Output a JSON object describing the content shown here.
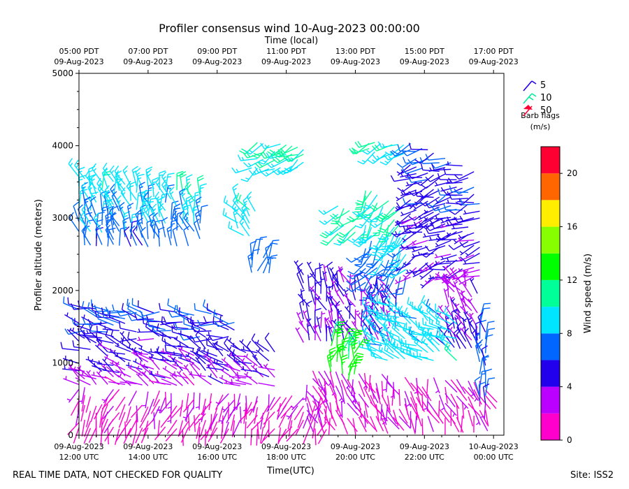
{
  "chart_data": {
    "type": "wind-barb profile",
    "title": "Profiler consensus wind 10-Aug-2023 00:00:00",
    "top_axis_label": "Time (local)",
    "xlabel": "Time(UTC)",
    "ylabel": "Profiler altitude (meters)",
    "x_range_hours_utc": [
      12.0,
      24.3
    ],
    "ylim": [
      0,
      5000
    ],
    "y_ticks": [
      0,
      1000,
      2000,
      3000,
      4000,
      5000
    ],
    "x_ticks_utc": [
      {
        "hour": 12,
        "line1": "09-Aug-2023",
        "line2": "12:00 UTC"
      },
      {
        "hour": 14,
        "line1": "09-Aug-2023",
        "line2": "14:00 UTC"
      },
      {
        "hour": 16,
        "line1": "09-Aug-2023",
        "line2": "16:00 UTC"
      },
      {
        "hour": 18,
        "line1": "09-Aug-2023",
        "line2": "18:00 UTC"
      },
      {
        "hour": 20,
        "line1": "09-Aug-2023",
        "line2": "20:00 UTC"
      },
      {
        "hour": 22,
        "line1": "09-Aug-2023",
        "line2": "22:00 UTC"
      },
      {
        "hour": 24,
        "line1": "10-Aug-2023",
        "line2": "00:00 UTC"
      }
    ],
    "x_ticks_local": [
      {
        "hour": 12,
        "line1": "05:00 PDT",
        "line2": "09-Aug-2023"
      },
      {
        "hour": 14,
        "line1": "07:00 PDT",
        "line2": "09-Aug-2023"
      },
      {
        "hour": 16,
        "line1": "09:00 PDT",
        "line2": "09-Aug-2023"
      },
      {
        "hour": 18,
        "line1": "11:00 PDT",
        "line2": "09-Aug-2023"
      },
      {
        "hour": 20,
        "line1": "13:00 PDT",
        "line2": "09-Aug-2023"
      },
      {
        "hour": 22,
        "line1": "15:00 PDT",
        "line2": "09-Aug-2023"
      },
      {
        "hour": 24,
        "line1": "17:00 PDT",
        "line2": "09-Aug-2023"
      }
    ],
    "barb_legend": {
      "entries": [
        {
          "label": "5",
          "color": "#2200ee"
        },
        {
          "label": "10",
          "color": "#00ee99"
        },
        {
          "label": "50",
          "color": "#ff0033"
        }
      ],
      "title_line1": "Barb flags",
      "title_line2": "(m/s)"
    },
    "colorbar": {
      "label": "Wind speed (m/s)",
      "range": [
        0,
        22
      ],
      "ticks": [
        0,
        4,
        8,
        12,
        16,
        20
      ],
      "bins": [
        {
          "from": 0,
          "to": 2,
          "color": "#ff00cc"
        },
        {
          "from": 2,
          "to": 4,
          "color": "#bb00ff"
        },
        {
          "from": 4,
          "to": 6,
          "color": "#2200ee"
        },
        {
          "from": 6,
          "to": 8,
          "color": "#0066ff"
        },
        {
          "from": 8,
          "to": 10,
          "color": "#00e5ff"
        },
        {
          "from": 10,
          "to": 12,
          "color": "#00ff99"
        },
        {
          "from": 12,
          "to": 14,
          "color": "#00ff00"
        },
        {
          "from": 14,
          "to": 16,
          "color": "#88ff00"
        },
        {
          "from": 16,
          "to": 18,
          "color": "#ffee00"
        },
        {
          "from": 18,
          "to": 20,
          "color": "#ff6600"
        },
        {
          "from": 20,
          "to": 22,
          "color": "#ff0033"
        }
      ]
    },
    "regions": [
      {
        "t0": 12.0,
        "t1": 15.6,
        "alt_top": 3550,
        "alt_bot": 2620,
        "spd0": 9.5,
        "spd1": 6.5,
        "dir": 345
      },
      {
        "t0": 16.6,
        "t1": 17.1,
        "alt_top": 3200,
        "alt_bot": 2750,
        "spd0": 9.5,
        "spd1": 9.0,
        "dir": 320
      },
      {
        "t0": 17.0,
        "t1": 17.6,
        "alt_top": 2500,
        "alt_bot": 2250,
        "spd0": 6.5,
        "spd1": 6.5,
        "dir": 10
      },
      {
        "t0": 12.0,
        "t1": 16.5,
        "alt_top": 1750,
        "alt_bot": 1350,
        "spd0": 6.5,
        "spd1": 5.0,
        "dir": 280
      },
      {
        "t0": 12.0,
        "t1": 17.8,
        "alt_top": 1280,
        "alt_bot": 700,
        "spd0": 5.0,
        "spd1": 3.0,
        "dir": 300
      },
      {
        "t0": 12.0,
        "t1": 19.3,
        "alt_top": 650,
        "alt_bot": 100,
        "spd0": 2.0,
        "spd1": 1.0,
        "dir": 200
      },
      {
        "t0": 17.0,
        "t1": 18.6,
        "alt_top": 4050,
        "alt_bot": 3700,
        "spd0": 10.5,
        "spd1": 9.0,
        "dir": 240
      },
      {
        "t0": 18.5,
        "t1": 21.2,
        "alt_top": 2200,
        "alt_bot": 1300,
        "spd0": 4.5,
        "spd1": 4.0,
        "dir": 340
      },
      {
        "t0": 19.5,
        "t1": 20.0,
        "alt_top": 3150,
        "alt_bot": 2800,
        "spd0": 10.5,
        "spd1": 9.5,
        "dir": 220
      },
      {
        "t0": 20.3,
        "t1": 21.5,
        "alt_top": 3400,
        "alt_bot": 2100,
        "spd0": 10.5,
        "spd1": 6.5,
        "dir": 215
      },
      {
        "t0": 20.4,
        "t1": 21.5,
        "alt_top": 4050,
        "alt_bot": 3900,
        "spd0": 10.5,
        "spd1": 9.0,
        "dir": 240
      },
      {
        "t0": 21.6,
        "t1": 23.6,
        "alt_top": 4050,
        "alt_bot": 2200,
        "spd0": 6.0,
        "spd1": 4.0,
        "dir": 250
      },
      {
        "t0": 22.7,
        "t1": 23.6,
        "alt_top": 2200,
        "alt_bot": 1200,
        "spd0": 3.0,
        "spd1": 5.0,
        "dir": 330
      },
      {
        "t0": 20.6,
        "t1": 23.0,
        "alt_top": 1800,
        "alt_bot": 1050,
        "spd0": 8.5,
        "spd1": 9.0,
        "dir": 300
      },
      {
        "t0": 19.3,
        "t1": 20.0,
        "alt_top": 1350,
        "alt_bot": 750,
        "spd0": 12.5,
        "spd1": 13.0,
        "dir": 10
      },
      {
        "t0": 18.6,
        "t1": 23.8,
        "alt_top": 900,
        "alt_bot": 250,
        "spd0": 2.0,
        "spd1": 1.5,
        "dir": 160
      },
      {
        "t0": 23.6,
        "t1": 23.9,
        "alt_top": 1600,
        "alt_bot": 450,
        "spd0": 6.5,
        "spd1": 7.0,
        "dir": 350
      }
    ]
  },
  "footer": {
    "disclaimer": "REAL TIME DATA, NOT CHECKED FOR QUALITY",
    "site": "Site: ISS2"
  }
}
